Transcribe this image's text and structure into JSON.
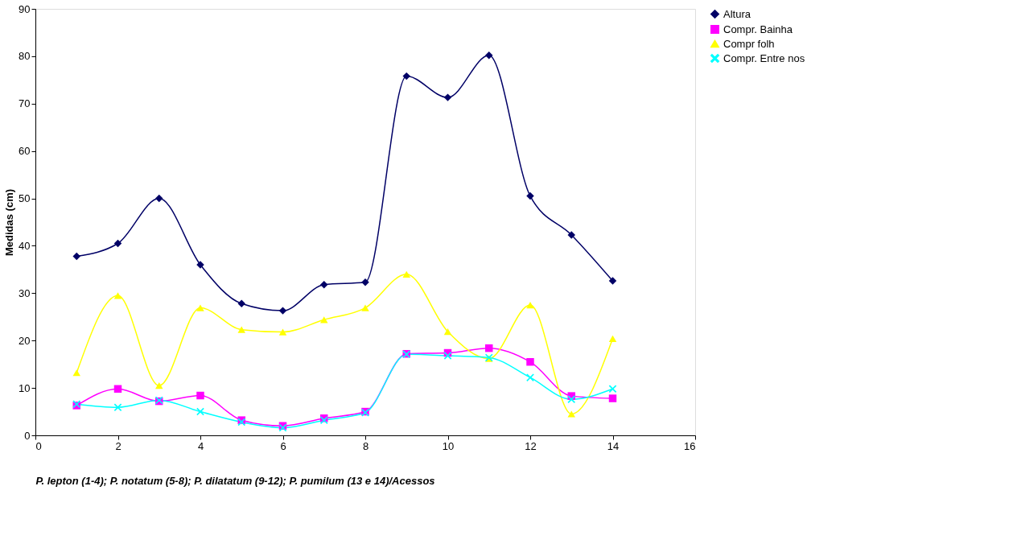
{
  "chart_data": {
    "type": "line",
    "xlabel": "P. lepton (1-4); P. notatum (5-8); P. dilatatum (9-12); P. pumilum (13 e 14)/Acessos",
    "ylabel": "Medidas (cm)",
    "x": [
      1,
      2,
      3,
      4,
      5,
      6,
      7,
      8,
      9,
      10,
      11,
      12,
      13,
      14
    ],
    "xlim": [
      0,
      16
    ],
    "xticks": [
      0,
      2,
      4,
      6,
      8,
      10,
      12,
      14,
      16
    ],
    "ylim": [
      0,
      90
    ],
    "yticks": [
      0,
      10,
      20,
      30,
      40,
      50,
      60,
      70,
      80,
      90
    ],
    "grid": false,
    "legend": "right",
    "series": [
      {
        "name": "Altura",
        "color": "#000066",
        "marker": "diamond",
        "values": [
          37.8,
          40.5,
          50,
          36,
          27.8,
          26.3,
          31.8,
          32.3,
          75.8,
          71.3,
          80.2,
          50.5,
          42.3,
          32.6
        ]
      },
      {
        "name": "Compr. Bainha",
        "color": "#ff00ff",
        "marker": "square",
        "values": [
          6.3,
          9.8,
          7.2,
          8.4,
          3.2,
          2.0,
          3.6,
          5.0,
          17.2,
          17.4,
          18.4,
          15.5,
          8.3,
          7.8
        ]
      },
      {
        "name": "Compr folh",
        "color": "#ffff00",
        "marker": "triangle",
        "values": [
          13.2,
          29.5,
          10.5,
          26.9,
          22.3,
          21.8,
          24.4,
          26.9,
          34.0,
          21.9,
          16.2,
          27.5,
          4.5,
          20.4
        ]
      },
      {
        "name": "Compr. Entre nos",
        "color": "#00ffff",
        "marker": "cross",
        "values": [
          6.6,
          5.9,
          7.4,
          5.0,
          2.8,
          1.6,
          3.2,
          4.8,
          17.1,
          16.8,
          16.4,
          12.2,
          7.6,
          9.8
        ]
      }
    ]
  }
}
